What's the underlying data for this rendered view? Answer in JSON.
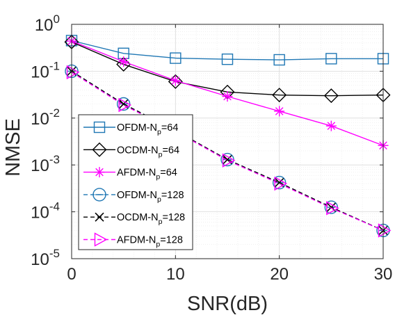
{
  "chart_data": {
    "type": "line",
    "xlabel": "SNR(dB)",
    "ylabel": "NMSE",
    "xlim": [
      0,
      30
    ],
    "ylim": [
      1e-05,
      1
    ],
    "yscale": "log",
    "xticks": [
      "0",
      "10",
      "20",
      "30"
    ],
    "yticks": [
      {
        "base": "10",
        "exp": "-5"
      },
      {
        "base": "10",
        "exp": "-4"
      },
      {
        "base": "10",
        "exp": "-3"
      },
      {
        "base": "10",
        "exp": "-2"
      },
      {
        "base": "10",
        "exp": "-1"
      },
      {
        "base": "10",
        "exp": "0"
      }
    ],
    "grid": true,
    "legend_placement": "lower-left",
    "x": [
      0,
      5,
      10,
      15,
      20,
      25,
      30
    ],
    "series": [
      {
        "name": "OFDM-N",
        "sub": "p",
        "suffix": "=64",
        "color": "#1f77b4",
        "marker": "square",
        "dash": "solid",
        "values": [
          0.45,
          0.24,
          0.19,
          0.18,
          0.175,
          0.185,
          0.185
        ]
      },
      {
        "name": "OCDM-N",
        "sub": "p",
        "suffix": "=64",
        "color": "#000000",
        "marker": "diamond",
        "dash": "solid",
        "values": [
          0.42,
          0.14,
          0.06,
          0.036,
          0.031,
          0.03,
          0.031
        ]
      },
      {
        "name": "AFDM-N",
        "sub": "p",
        "suffix": "=64",
        "color": "#ff00ff",
        "marker": "asterisk",
        "dash": "solid",
        "values": [
          0.44,
          0.16,
          0.063,
          0.029,
          0.014,
          0.0068,
          0.0026
        ]
      },
      {
        "name": "OFDM-N",
        "sub": "p",
        "suffix": "=128",
        "color": "#1f77b4",
        "marker": "circle-dash",
        "dash": "dashed",
        "values": [
          0.1,
          0.02,
          0.0054,
          0.0013,
          0.00042,
          0.000125,
          4e-05
        ]
      },
      {
        "name": "OCDM-N",
        "sub": "p",
        "suffix": "=128",
        "color": "#000000",
        "marker": "x",
        "dash": "dashed",
        "values": [
          0.1,
          0.02,
          0.0054,
          0.0013,
          0.00042,
          0.000125,
          4e-05
        ]
      },
      {
        "name": "AFDM-N",
        "sub": "p",
        "suffix": "=128",
        "color": "#ff00ff",
        "marker": "triangle-right",
        "dash": "dashed",
        "values": [
          0.095,
          0.019,
          0.0052,
          0.00125,
          0.0004,
          0.00012,
          4e-05
        ]
      }
    ]
  }
}
